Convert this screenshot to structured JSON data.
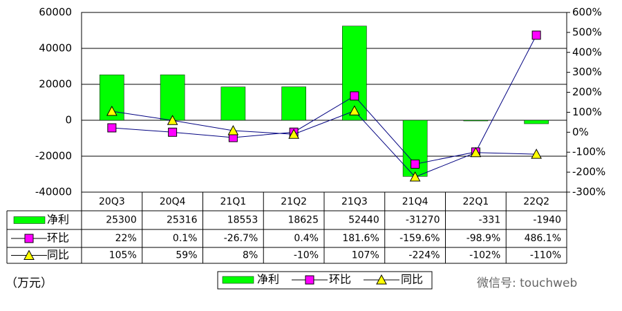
{
  "chart_data": {
    "type": "bar-line-table",
    "unit_label": "（万元）",
    "watermark": "微信号: touchweb",
    "categories": [
      "20Q3",
      "20Q4",
      "21Q1",
      "21Q2",
      "21Q3",
      "21Q4",
      "22Q1",
      "22Q2"
    ],
    "series": [
      {
        "name": "净利",
        "type": "bar",
        "color": "#00ff00",
        "values": [
          25300,
          25316,
          18553,
          18625,
          52440,
          -31270,
          -331,
          -1940
        ]
      },
      {
        "name": "环比",
        "type": "line",
        "marker": "square",
        "color": "#ff00ff",
        "line_color": "#000080",
        "axis": "y2",
        "values": [
          22,
          0.1,
          -26.7,
          0.4,
          181.6,
          -159.6,
          -98.9,
          486.1
        ],
        "value_labels": [
          "22%",
          "0.1%",
          "-26.7%",
          "0.4%",
          "181.6%",
          "-159.6%",
          "-98.9%",
          "486.1%"
        ]
      },
      {
        "name": "同比",
        "type": "line",
        "marker": "triangle",
        "color": "#ffff00",
        "line_color": "#000080",
        "axis": "y2",
        "values": [
          105,
          59,
          8,
          -10,
          107,
          -224,
          -102,
          -110
        ],
        "value_labels": [
          "105%",
          "59%",
          "8%",
          "-10%",
          "107%",
          "-224%",
          "-102%",
          "-110%"
        ]
      }
    ],
    "ylim": [
      -40000,
      60000
    ],
    "yticks": [
      -40000,
      -20000,
      0,
      20000,
      40000,
      60000
    ],
    "y2lim": [
      -300,
      600
    ],
    "y2ticks": [
      {
        "value": -300,
        "label": "-300%"
      },
      {
        "value": -200,
        "label": "-200%"
      },
      {
        "value": -100,
        "label": "-100%"
      },
      {
        "value": 0,
        "label": "0%"
      },
      {
        "value": 100,
        "label": "100%"
      },
      {
        "value": 200,
        "label": "200%"
      },
      {
        "value": 300,
        "label": "300%"
      },
      {
        "value": 400,
        "label": "400%"
      },
      {
        "value": 500,
        "label": "500%"
      },
      {
        "value": 600,
        "label": "600%"
      }
    ],
    "grid": true
  }
}
